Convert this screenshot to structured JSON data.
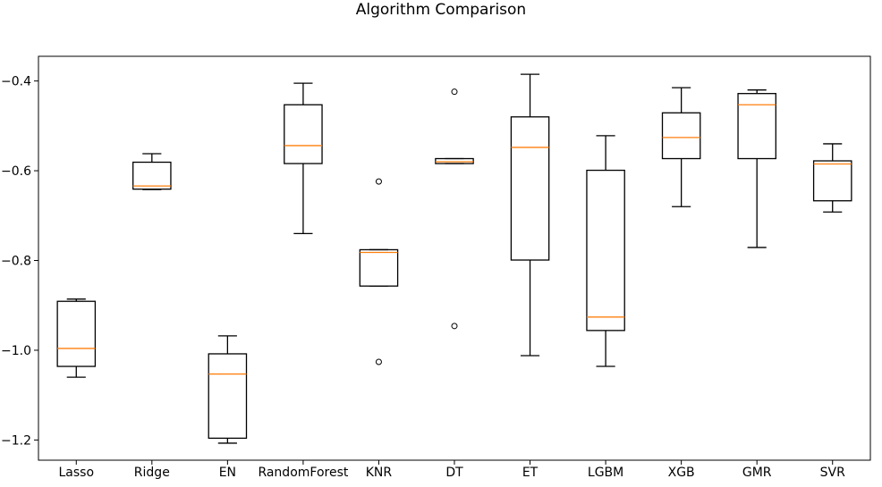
{
  "chart_data": {
    "type": "box",
    "title": "Algorithm Comparison",
    "xlabel": "",
    "ylabel": "",
    "ylim": [
      -1.245,
      -0.345
    ],
    "yticks": [
      -0.4,
      -0.6,
      -0.8,
      -1.0,
      -1.2
    ],
    "ytick_labels": [
      "−0.4",
      "−0.6",
      "−0.8",
      "−1.0",
      "−1.2"
    ],
    "grid": false,
    "colors": {
      "box": "#000000",
      "median": "#ff7f0e"
    },
    "categories": [
      "Lasso",
      "Ridge",
      "EN",
      "RandomForest",
      "KNR",
      "DT",
      "ET",
      "LGBM",
      "XGB",
      "GMR",
      "SVR"
    ],
    "boxes": [
      {
        "label": "Lasso",
        "whislo": -1.06,
        "q1": -1.036,
        "med": -0.996,
        "q3": -0.891,
        "whishi": -0.886,
        "fliers": []
      },
      {
        "label": "Ridge",
        "whislo": -0.642,
        "q1": -0.641,
        "med": -0.634,
        "q3": -0.581,
        "whishi": -0.562,
        "fliers": []
      },
      {
        "label": "EN",
        "whislo": -1.207,
        "q1": -1.196,
        "med": -1.053,
        "q3": -1.008,
        "whishi": -0.968,
        "fliers": []
      },
      {
        "label": "RandomForest",
        "whislo": -0.74,
        "q1": -0.584,
        "med": -0.544,
        "q3": -0.453,
        "whishi": -0.405,
        "fliers": []
      },
      {
        "label": "KNR",
        "whislo": -0.857,
        "q1": -0.857,
        "med": -0.782,
        "q3": -0.776,
        "whishi": -0.776,
        "fliers": [
          -0.624,
          -1.026
        ]
      },
      {
        "label": "DT",
        "whislo": -0.584,
        "q1": -0.584,
        "med": -0.58,
        "q3": -0.573,
        "whishi": -0.573,
        "fliers": [
          -0.424,
          -0.946
        ]
      },
      {
        "label": "ET",
        "whislo": -1.012,
        "q1": -0.799,
        "med": -0.548,
        "q3": -0.48,
        "whishi": -0.385,
        "fliers": []
      },
      {
        "label": "LGBM",
        "whislo": -1.036,
        "q1": -0.956,
        "med": -0.926,
        "q3": -0.599,
        "whishi": -0.522,
        "fliers": []
      },
      {
        "label": "XGB",
        "whislo": -0.68,
        "q1": -0.573,
        "med": -0.526,
        "q3": -0.471,
        "whishi": -0.415,
        "fliers": []
      },
      {
        "label": "GMR",
        "whislo": -0.771,
        "q1": -0.573,
        "med": -0.453,
        "q3": -0.428,
        "whishi": -0.42,
        "fliers": []
      },
      {
        "label": "SVR",
        "whislo": -0.692,
        "q1": -0.667,
        "med": -0.585,
        "q3": -0.578,
        "whishi": -0.54,
        "fliers": []
      }
    ]
  }
}
